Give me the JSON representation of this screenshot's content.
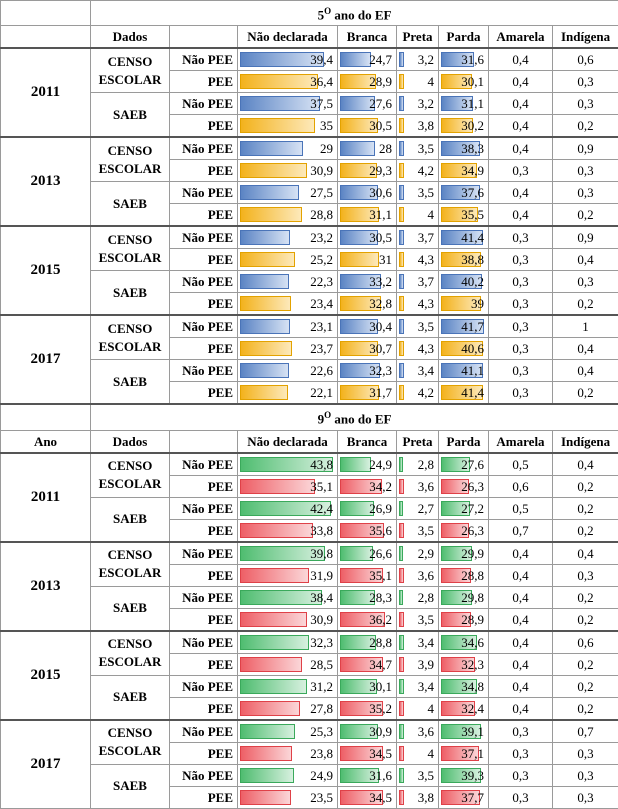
{
  "headers": {
    "ano": "Ano",
    "dados": "Dados",
    "cols": [
      "Não declarada",
      "Branca",
      "Preta",
      "Parda",
      "Amarela",
      "Indígena"
    ]
  },
  "sections": [
    {
      "prefix": "5",
      "sup": "O",
      "suffix": " ano do EF",
      "show_ano_label": false,
      "colors": [
        "blue",
        "orange"
      ],
      "years": [
        {
          "year": "2011",
          "sources": [
            {
              "label_lines": [
                "CENSO",
                "ESCOLAR"
              ],
              "rows": [
                {
                  "group": "Não PEE",
                  "values": [
                    "39,4",
                    "24,7",
                    "3,2",
                    "31,6",
                    "0,4",
                    "0,6"
                  ]
                },
                {
                  "group": "PEE",
                  "values": [
                    "36,4",
                    "28,9",
                    "4",
                    "30,1",
                    "0,4",
                    "0,3"
                  ]
                }
              ]
            },
            {
              "label_lines": [
                "SAEB"
              ],
              "rows": [
                {
                  "group": "Não PEE",
                  "values": [
                    "37,5",
                    "27,6",
                    "3,2",
                    "31,1",
                    "0,4",
                    "0,3"
                  ]
                },
                {
                  "group": "PEE",
                  "values": [
                    "35",
                    "30,5",
                    "3,8",
                    "30,2",
                    "0,4",
                    "0,2"
                  ]
                }
              ]
            }
          ]
        },
        {
          "year": "2013",
          "sources": [
            {
              "label_lines": [
                "CENSO",
                "ESCOLAR"
              ],
              "rows": [
                {
                  "group": "Não PEE",
                  "values": [
                    "29",
                    "28",
                    "3,5",
                    "38,3",
                    "0,4",
                    "0,9"
                  ]
                },
                {
                  "group": "PEE",
                  "values": [
                    "30,9",
                    "29,3",
                    "4,2",
                    "34,9",
                    "0,3",
                    "0,3"
                  ]
                }
              ]
            },
            {
              "label_lines": [
                "SAEB"
              ],
              "rows": [
                {
                  "group": "Não PEE",
                  "values": [
                    "27,5",
                    "30,6",
                    "3,5",
                    "37,6",
                    "0,4",
                    "0,3"
                  ]
                },
                {
                  "group": "PEE",
                  "values": [
                    "28,8",
                    "31,1",
                    "4",
                    "35,5",
                    "0,4",
                    "0,2"
                  ]
                }
              ]
            }
          ]
        },
        {
          "year": "2015",
          "sources": [
            {
              "label_lines": [
                "CENSO",
                "ESCOLAR"
              ],
              "rows": [
                {
                  "group": "Não PEE",
                  "values": [
                    "23,2",
                    "30,5",
                    "3,7",
                    "41,4",
                    "0,3",
                    "0,9"
                  ]
                },
                {
                  "group": "PEE",
                  "values": [
                    "25,2",
                    "31",
                    "4,3",
                    "38,8",
                    "0,3",
                    "0,4"
                  ]
                }
              ]
            },
            {
              "label_lines": [
                "SAEB"
              ],
              "rows": [
                {
                  "group": "Não PEE",
                  "values": [
                    "22,3",
                    "33,2",
                    "3,7",
                    "40,2",
                    "0,3",
                    "0,3"
                  ]
                },
                {
                  "group": "PEE",
                  "values": [
                    "23,4",
                    "32,8",
                    "4,3",
                    "39",
                    "0,3",
                    "0,2"
                  ]
                }
              ]
            }
          ]
        },
        {
          "year": "2017",
          "sources": [
            {
              "label_lines": [
                "CENSO",
                "ESCOLAR"
              ],
              "rows": [
                {
                  "group": "Não PEE",
                  "values": [
                    "23,1",
                    "30,4",
                    "3,5",
                    "41,7",
                    "0,3",
                    "1"
                  ]
                },
                {
                  "group": "PEE",
                  "values": [
                    "23,7",
                    "30,7",
                    "4,3",
                    "40,6",
                    "0,3",
                    "0,4"
                  ]
                }
              ]
            },
            {
              "label_lines": [
                "SAEB"
              ],
              "rows": [
                {
                  "group": "Não PEE",
                  "values": [
                    "22,6",
                    "32,3",
                    "3,4",
                    "41,1",
                    "0,3",
                    "0,4"
                  ]
                },
                {
                  "group": "PEE",
                  "values": [
                    "22,1",
                    "31,7",
                    "4,2",
                    "41,4",
                    "0,3",
                    "0,2"
                  ]
                }
              ]
            }
          ]
        }
      ]
    },
    {
      "prefix": "9",
      "sup": "O",
      "suffix": " ano do EF",
      "show_ano_label": true,
      "colors": [
        "green",
        "red"
      ],
      "years": [
        {
          "year": "2011",
          "sources": [
            {
              "label_lines": [
                "CENSO",
                "ESCOLAR"
              ],
              "rows": [
                {
                  "group": "Não PEE",
                  "values": [
                    "43,8",
                    "24,9",
                    "2,8",
                    "27,6",
                    "0,5",
                    "0,4"
                  ]
                },
                {
                  "group": "PEE",
                  "values": [
                    "35,1",
                    "34,2",
                    "3,6",
                    "26,3",
                    "0,6",
                    "0,2"
                  ]
                }
              ]
            },
            {
              "label_lines": [
                "SAEB"
              ],
              "rows": [
                {
                  "group": "Não PEE",
                  "values": [
                    "42,4",
                    "26,9",
                    "2,7",
                    "27,2",
                    "0,5",
                    "0,2"
                  ]
                },
                {
                  "group": "PEE",
                  "values": [
                    "33,8",
                    "35,6",
                    "3,5",
                    "26,3",
                    "0,7",
                    "0,2"
                  ]
                }
              ]
            }
          ]
        },
        {
          "year": "2013",
          "sources": [
            {
              "label_lines": [
                "CENSO",
                "ESCOLAR"
              ],
              "rows": [
                {
                  "group": "Não PEE",
                  "values": [
                    "39,8",
                    "26,6",
                    "2,9",
                    "29,9",
                    "0,4",
                    "0,4"
                  ]
                },
                {
                  "group": "PEE",
                  "values": [
                    "31,9",
                    "35,1",
                    "3,6",
                    "28,8",
                    "0,4",
                    "0,3"
                  ]
                }
              ]
            },
            {
              "label_lines": [
                "SAEB"
              ],
              "rows": [
                {
                  "group": "Não PEE",
                  "values": [
                    "38,4",
                    "28,3",
                    "2,8",
                    "29,8",
                    "0,4",
                    "0,2"
                  ]
                },
                {
                  "group": "PEE",
                  "values": [
                    "30,9",
                    "36,2",
                    "3,5",
                    "28,9",
                    "0,4",
                    "0,2"
                  ]
                }
              ]
            }
          ]
        },
        {
          "year": "2015",
          "sources": [
            {
              "label_lines": [
                "CENSO",
                "ESCOLAR"
              ],
              "rows": [
                {
                  "group": "Não PEE",
                  "values": [
                    "32,3",
                    "28,8",
                    "3,4",
                    "34,6",
                    "0,4",
                    "0,6"
                  ]
                },
                {
                  "group": "PEE",
                  "values": [
                    "28,5",
                    "34,7",
                    "3,9",
                    "32,3",
                    "0,4",
                    "0,2"
                  ]
                }
              ]
            },
            {
              "label_lines": [
                "SAEB"
              ],
              "rows": [
                {
                  "group": "Não PEE",
                  "values": [
                    "31,2",
                    "30,1",
                    "3,4",
                    "34,8",
                    "0,4",
                    "0,2"
                  ]
                },
                {
                  "group": "PEE",
                  "values": [
                    "27,8",
                    "35,2",
                    "4",
                    "32,4",
                    "0,4",
                    "0,2"
                  ]
                }
              ]
            }
          ]
        },
        {
          "year": "2017",
          "sources": [
            {
              "label_lines": [
                "CENSO",
                "ESCOLAR"
              ],
              "rows": [
                {
                  "group": "Não PEE",
                  "values": [
                    "25,3",
                    "30,9",
                    "3,6",
                    "39,1",
                    "0,3",
                    "0,7"
                  ]
                },
                {
                  "group": "PEE",
                  "values": [
                    "23,8",
                    "34,5",
                    "4",
                    "37,1",
                    "0,3",
                    "0,3"
                  ]
                }
              ]
            },
            {
              "label_lines": [
                "SAEB"
              ],
              "rows": [
                {
                  "group": "Não PEE",
                  "values": [
                    "24,9",
                    "31,6",
                    "3,5",
                    "39,3",
                    "0,3",
                    "0,3"
                  ]
                },
                {
                  "group": "PEE",
                  "values": [
                    "23,5",
                    "34,5",
                    "3,8",
                    "37,7",
                    "0,3",
                    "0,3"
                  ]
                }
              ]
            }
          ]
        }
      ]
    }
  ]
}
